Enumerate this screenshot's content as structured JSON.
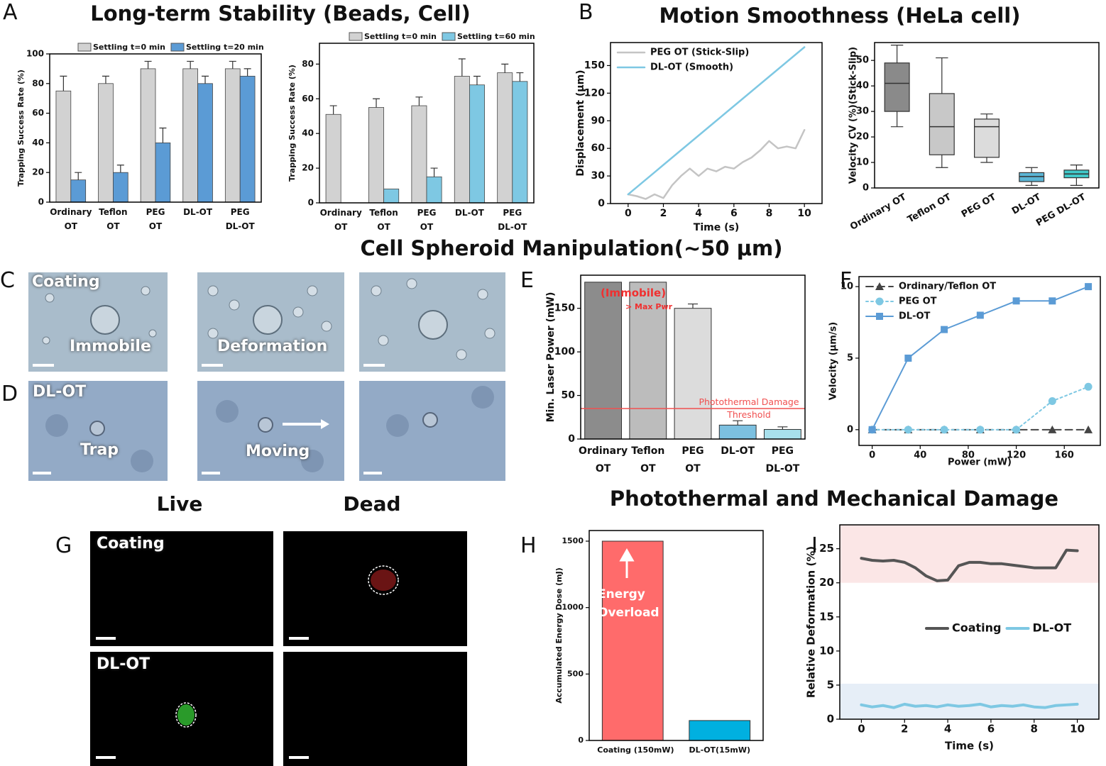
{
  "figure": {
    "panels": [
      "A",
      "B",
      "C",
      "D",
      "E",
      "F",
      "G",
      "H",
      "I"
    ],
    "titles": [
      "Long-term Stability (Beads, Cell)",
      "Motion Smoothness (HeLa cell)",
      "Cell Spheroid Manipulation(~50 μm)",
      "Photothermal and Mechanical Damage"
    ],
    "micrographs": {
      "coating": "Coating",
      "immobile": "Immobile",
      "deformation": "Deformation",
      "dlot": "DL-OT",
      "trap": "Trap",
      "moving": "Moving"
    },
    "fluorescence": {
      "live": "Live",
      "dead": "Dead",
      "coating": "Coating",
      "dlot": "DL-OT"
    }
  },
  "chart_data": [
    {
      "type": "bar",
      "ylabel": "Trapping Success Rate (%)",
      "categories": [
        "Ordinary OT",
        "Teflon OT",
        "PEG OT",
        "DL-OT",
        "PEG DL-OT"
      ],
      "series": [
        {
          "name": "Settling t=0 min",
          "color": "#d2d2d2",
          "values": [
            75,
            80,
            90,
            90,
            90
          ],
          "errors": [
            10,
            5,
            5,
            5,
            5
          ]
        },
        {
          "name": "Settling t=20 min",
          "color": "#5b9bd5",
          "values": [
            15,
            20,
            40,
            80,
            85
          ],
          "errors": [
            5,
            5,
            10,
            5,
            5
          ]
        }
      ],
      "ylim": [
        0,
        100
      ],
      "yticks": [
        0,
        20,
        40,
        60,
        80,
        100
      ],
      "legend": "top"
    },
    {
      "type": "bar",
      "ylabel": "Trapping Success Rate (%)",
      "categories": [
        "Ordinary OT",
        "Teflon OT",
        "PEG OT",
        "DL-OT",
        "PEG DL-OT"
      ],
      "series": [
        {
          "name": "Settling t=0 min",
          "color": "#d2d2d2",
          "values": [
            51,
            55,
            56,
            73,
            75
          ],
          "errors": [
            5,
            5,
            5,
            10,
            5
          ]
        },
        {
          "name": "Settling t=60 min",
          "color": "#7ec8e3",
          "values": [
            0,
            8,
            15,
            68,
            70
          ],
          "errors": [
            null,
            null,
            5,
            5,
            5
          ]
        }
      ],
      "ylim": [
        0,
        92
      ],
      "yticks": [
        0,
        20,
        40,
        60,
        80
      ],
      "legend": "top"
    },
    {
      "type": "line",
      "xlabel": "Time (s)",
      "ylabel": "Displacement (μm)",
      "x": [
        0,
        0.5,
        1,
        1.5,
        2,
        2.5,
        3,
        3.5,
        4,
        4.5,
        5,
        5.5,
        6,
        6.5,
        7,
        7.5,
        8,
        8.5,
        9,
        9.5,
        10
      ],
      "series": [
        {
          "name": "PEG OT (Stick-Slip)",
          "color": "#c4c4c4",
          "width": 2.5,
          "values": [
            10,
            8,
            5,
            10,
            6,
            20,
            30,
            38,
            30,
            38,
            35,
            40,
            38,
            45,
            50,
            58,
            68,
            60,
            62,
            60,
            80
          ]
        },
        {
          "name": "DL-OT (Smooth)",
          "color": "#7ec8e3",
          "width": 2.5,
          "values": [
            10,
            18,
            26,
            34,
            42,
            50,
            58,
            66,
            74,
            82,
            90,
            98,
            106,
            114,
            122,
            130,
            138,
            146,
            154,
            162,
            170
          ]
        }
      ],
      "xlim": [
        -1,
        11
      ],
      "xticks": [
        0,
        2,
        4,
        6,
        8,
        10
      ],
      "ylim": [
        0,
        175
      ],
      "yticks": [
        0,
        30,
        60,
        90,
        120,
        150
      ],
      "legend": "upper left"
    },
    {
      "type": "box",
      "ylabel": "Velocity CV (%)(Stick-Slip)",
      "categories": [
        "Ordinary OT",
        "Teflon OT",
        "PEG OT",
        "DL-OT",
        "PEG DL-OT"
      ],
      "boxes": [
        [
          24,
          30,
          41,
          49,
          56
        ],
        [
          8,
          13,
          24,
          37,
          51
        ],
        [
          10,
          12,
          24,
          27,
          29
        ],
        [
          1,
          2.5,
          4.5,
          6,
          8
        ],
        [
          1,
          4,
          5.5,
          7,
          9
        ]
      ],
      "colors": [
        "#8a8a8a",
        "#c8c8c8",
        "#dcdcdc",
        "#5bb5d5",
        "#40c8c8"
      ],
      "ylim": [
        0,
        57
      ],
      "yticks": [
        0,
        10,
        20,
        30,
        40,
        50
      ]
    },
    {
      "type": "bar",
      "ylabel": "Min. Laser Power (mW)",
      "categories": [
        "Ordinary OT",
        "Teflon OT",
        "PEG OT",
        "DL-OT",
        "PEG DL-OT"
      ],
      "values": [
        180,
        180,
        150,
        16,
        11
      ],
      "errors": [
        null,
        null,
        5,
        5,
        3
      ],
      "colors": [
        "#8c8c8c",
        "#bcbcbc",
        "#dcdcdc",
        "#7cc0e0",
        "#a8e0ec"
      ],
      "threshold": {
        "value": 35,
        "label": "Photothermal Damage Threshold",
        "color": "#f05050"
      },
      "annotations": [
        "(Immobile)",
        "> Max Pwr"
      ],
      "ylim": [
        0,
        188
      ],
      "yticks": [
        0,
        50,
        100,
        150
      ]
    },
    {
      "type": "line",
      "xlabel": "Power (mW)",
      "ylabel": "Velocity (μm/s)",
      "x": [
        0,
        30,
        60,
        90,
        120,
        150,
        180
      ],
      "series": [
        {
          "name": "Ordinary/Teflon OT",
          "color": "#444444",
          "width": 2,
          "dash": "10 6",
          "marker": "triangle",
          "values": [
            0,
            0,
            0,
            0,
            0,
            0,
            0
          ]
        },
        {
          "name": "PEG OT",
          "color": "#7ec8e3",
          "width": 2,
          "dash": "3 4",
          "marker": "circle",
          "values": [
            0,
            0,
            0,
            0,
            0,
            2,
            3
          ]
        },
        {
          "name": "DL-OT",
          "color": "#5b9bd5",
          "width": 2,
          "marker": "square",
          "values": [
            0,
            5,
            7,
            8,
            9,
            9,
            10
          ]
        }
      ],
      "xlim": [
        -11,
        190
      ],
      "xticks": [
        0,
        40,
        80,
        120,
        160
      ],
      "ylim": [
        -1.1,
        10.7
      ],
      "yticks": [
        0,
        5,
        10
      ],
      "legend": "upper left"
    },
    {
      "type": "bar",
      "ylabel": "Accumulated Energy Dose (mJ)",
      "categories": [
        "Coating (150mW)",
        "DL-OT(15mW)"
      ],
      "values": [
        1500,
        150
      ],
      "colors": [
        "#ff6b6b",
        "#00b0e0"
      ],
      "annotations": [
        "Energy Overload"
      ],
      "ylim": [
        0,
        1580
      ],
      "yticks": [
        0,
        500,
        1000,
        1500
      ]
    },
    {
      "type": "line",
      "xlabel": "Time (s)",
      "ylabel": "Relative Deformation (%)",
      "x": [
        0,
        0.5,
        1,
        1.5,
        2,
        2.5,
        3,
        3.5,
        4,
        4.5,
        5,
        5.5,
        6,
        6.5,
        7,
        7.5,
        8,
        8.5,
        9,
        9.5,
        10
      ],
      "series": [
        {
          "name": "Coating",
          "color": "#555555",
          "width": 4,
          "values": [
            23.6,
            23.3,
            23.2,
            23.3,
            23.0,
            22.2,
            21.0,
            20.3,
            20.4,
            22.5,
            23.0,
            23.0,
            22.8,
            22.8,
            22.6,
            22.4,
            22.2,
            22.2,
            22.2,
            24.8,
            24.7
          ]
        },
        {
          "name": "DL-OT",
          "color": "#7ec8e3",
          "width": 4,
          "values": [
            2.1,
            1.8,
            2.0,
            1.7,
            2.2,
            1.9,
            2.0,
            1.8,
            2.1,
            1.9,
            2.0,
            2.2,
            1.8,
            2.0,
            1.9,
            2.1,
            1.8,
            1.7,
            2.0,
            2.1,
            2.2
          ]
        }
      ],
      "bands": [
        {
          "from": 20,
          "to": 28.5,
          "color": "#fbe6e6"
        },
        {
          "from": 0,
          "to": 5.2,
          "color": "#e6eef7"
        }
      ],
      "xlim": [
        -1,
        11
      ],
      "xticks": [
        0,
        2,
        4,
        6,
        8,
        10
      ],
      "ylim": [
        0,
        28.5
      ],
      "yticks": [
        0,
        5,
        10,
        15,
        20,
        25
      ],
      "legend": "center"
    }
  ]
}
